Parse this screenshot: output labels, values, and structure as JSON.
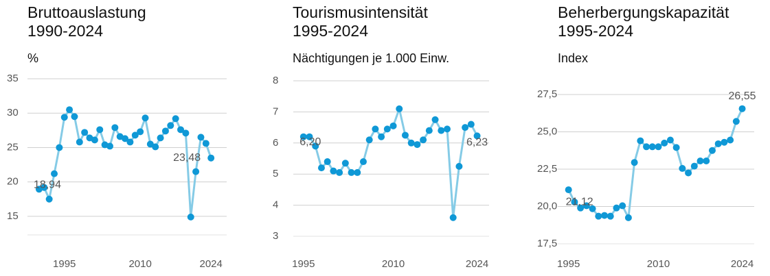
{
  "chart_data": [
    {
      "type": "line",
      "title": "Bruttoauslastung",
      "subtitle": "1990-2024",
      "ylabel": "%",
      "x": [
        1990,
        1991,
        1992,
        1993,
        1994,
        1995,
        1996,
        1997,
        1998,
        1999,
        2000,
        2001,
        2002,
        2003,
        2004,
        2005,
        2006,
        2007,
        2008,
        2009,
        2010,
        2011,
        2012,
        2013,
        2014,
        2015,
        2016,
        2017,
        2018,
        2019,
        2020,
        2021,
        2022,
        2023,
        2024
      ],
      "values": [
        18.94,
        19.2,
        17.5,
        21.2,
        25,
        29.4,
        30.5,
        29.5,
        25.8,
        27.2,
        26.4,
        26.1,
        27.6,
        25.4,
        25.2,
        27.9,
        26.6,
        26.3,
        25.8,
        26.8,
        27.3,
        29.3,
        25.5,
        25.1,
        26.4,
        27.4,
        28.2,
        29.2,
        27.6,
        27.1,
        14.9,
        21.5,
        26.5,
        25.6,
        23.48
      ],
      "value_labels": [
        "18,94",
        null,
        null,
        null,
        null,
        null,
        null,
        null,
        null,
        null,
        null,
        null,
        null,
        null,
        null,
        null,
        null,
        null,
        null,
        null,
        null,
        null,
        null,
        null,
        null,
        null,
        null,
        null,
        null,
        null,
        null,
        null,
        null,
        null,
        "23,48"
      ],
      "line_color": "#85cbe6",
      "marker_color": "#0f98d6",
      "xlim": [
        1987.7,
        2027.1
      ],
      "xticks": [
        1995,
        2010,
        2024
      ],
      "ylim": [
        12.3,
        35
      ],
      "yticks": [
        15,
        20,
        25,
        30,
        35
      ],
      "grid": true
    },
    {
      "type": "line",
      "title": "Tourismusintensität",
      "subtitle": "1995-2024",
      "ylabel": "Nächtigungen je 1.000 Einw.",
      "x": [
        1995,
        1996,
        1997,
        1998,
        1999,
        2000,
        2001,
        2002,
        2003,
        2004,
        2005,
        2006,
        2007,
        2008,
        2009,
        2010,
        2011,
        2012,
        2013,
        2014,
        2015,
        2016,
        2017,
        2018,
        2019,
        2020,
        2021,
        2022,
        2023,
        2024
      ],
      "values": [
        6.2,
        6.2,
        5.9,
        5.2,
        5.4,
        5.1,
        5.05,
        5.35,
        5.05,
        5.05,
        5.4,
        6.1,
        6.45,
        6.2,
        6.45,
        6.55,
        7.1,
        6.25,
        6.0,
        5.95,
        6.1,
        6.4,
        6.75,
        6.4,
        6.45,
        3.6,
        5.25,
        6.5,
        6.6,
        6.23
      ],
      "value_labels": [
        "6,20",
        null,
        null,
        null,
        null,
        null,
        null,
        null,
        null,
        null,
        null,
        null,
        null,
        null,
        null,
        null,
        null,
        null,
        null,
        null,
        null,
        null,
        null,
        null,
        null,
        null,
        null,
        null,
        null,
        "6,23"
      ],
      "line_color": "#85cbe6",
      "marker_color": "#0f98d6",
      "xlim": [
        1993.3,
        2026
      ],
      "xticks": [
        1995,
        2010,
        2024
      ],
      "ylim": [
        3,
        8
      ],
      "yticks": [
        3,
        4,
        5,
        6,
        7,
        8
      ],
      "grid": true
    },
    {
      "type": "line",
      "title": "Beherbergungskapazität",
      "subtitle": "1995-2024",
      "ylabel": "Index",
      "x": [
        1995,
        1996,
        1997,
        1998,
        1999,
        2000,
        2001,
        2002,
        2003,
        2004,
        2005,
        2006,
        2007,
        2008,
        2009,
        2010,
        2011,
        2012,
        2013,
        2014,
        2015,
        2016,
        2017,
        2018,
        2019,
        2020,
        2021,
        2022,
        2023,
        2024
      ],
      "values": [
        21.12,
        20.3,
        19.9,
        20.05,
        19.85,
        19.35,
        19.4,
        19.35,
        19.9,
        20.05,
        19.25,
        22.95,
        24.4,
        24.0,
        24.0,
        24.0,
        24.25,
        24.45,
        23.95,
        22.55,
        22.25,
        22.7,
        23.05,
        23.05,
        23.75,
        24.2,
        24.3,
        24.45,
        25.7,
        26.55
      ],
      "value_labels": [
        "21,12",
        null,
        null,
        null,
        null,
        null,
        null,
        null,
        null,
        null,
        null,
        null,
        null,
        null,
        null,
        null,
        null,
        null,
        null,
        null,
        null,
        null,
        null,
        null,
        null,
        null,
        null,
        null,
        null,
        "26,55"
      ],
      "line_color": "#85cbe6",
      "marker_color": "#0f98d6",
      "xlim": [
        1993.2,
        2026
      ],
      "xticks": [
        1995,
        2010,
        2024
      ],
      "ylim": [
        17.5,
        27.5
      ],
      "yticks": [
        {
          "value": 17.5,
          "label": "17,5"
        },
        {
          "value": 20,
          "label": "20,0"
        },
        {
          "value": 22.5,
          "label": "22,5"
        },
        {
          "value": 25,
          "label": "25,0"
        },
        {
          "value": 27.5,
          "label": "27,5"
        }
      ],
      "grid": true
    }
  ]
}
